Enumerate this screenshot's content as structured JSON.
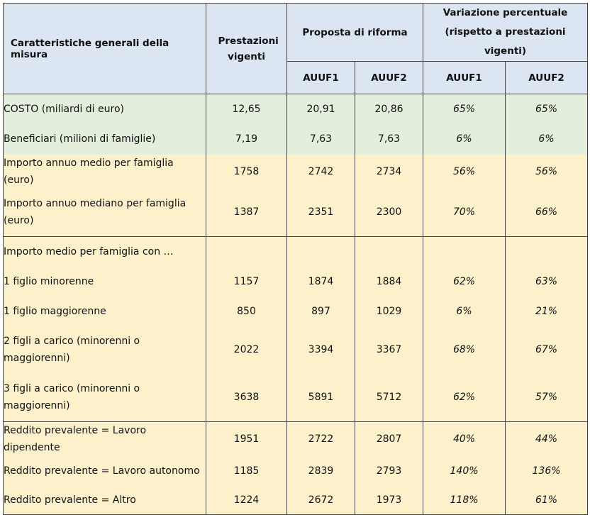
{
  "header": {
    "col_measure": "Caratteristiche generali della misura",
    "col_current": "Prestazioni vigenti",
    "col_reform": "Proposta di riforma",
    "col_variation_line1": "Variazione percentuale",
    "col_variation_line2": "(rispetto a prestazioni vigenti)",
    "auuf1": "AUUF1",
    "auuf2": "AUUF2"
  },
  "section_general": [
    {
      "label": "COSTO (miliardi di euro)",
      "current": "12,65",
      "auuf1": "20,91",
      "auuf2": "20,86",
      "var1": "65%",
      "var2": "65%"
    },
    {
      "label": "Beneficiari (milioni di famiglie)",
      "current": "7,19",
      "auuf1": "7,63",
      "auuf2": "7,63",
      "var1": "6%",
      "var2": "6%"
    }
  ],
  "section_amounts": [
    {
      "label": "Importo annuo medio per famiglia (euro)",
      "current": "1758",
      "auuf1": "2742",
      "auuf2": "2734",
      "var1": "56%",
      "var2": "56%"
    },
    {
      "label": "Importo annuo mediano per famiglia (euro)",
      "current": "1387",
      "auuf1": "2351",
      "auuf2": "2300",
      "var1": "70%",
      "var2": "66%"
    }
  ],
  "section_children": {
    "subheading": "Importo medio per famiglia con …",
    "rows": [
      {
        "label": "1 figlio minorenne",
        "current": "1157",
        "auuf1": "1874",
        "auuf2": "1884",
        "var1": "62%",
        "var2": "63%"
      },
      {
        "label": "1 figlio maggiorenne",
        "current": "850",
        "auuf1": "897",
        "auuf2": "1029",
        "var1": "6%",
        "var2": "21%"
      },
      {
        "label": "2 figli a carico (minorenni o maggiorenni)",
        "current": "2022",
        "auuf1": "3394",
        "auuf2": "3367",
        "var1": "68%",
        "var2": "67%"
      },
      {
        "label": "3 figli a carico (minorenni o maggiorenni)",
        "current": "3638",
        "auuf1": "5891",
        "auuf2": "5712",
        "var1": "62%",
        "var2": "57%"
      }
    ]
  },
  "section_income": [
    {
      "label": "Reddito prevalente = Lavoro dipendente",
      "current": "1951",
      "auuf1": "2722",
      "auuf2": "2807",
      "var1": "40%",
      "var2": "44%"
    },
    {
      "label": "Reddito prevalente = Lavoro autonomo",
      "current": "1185",
      "auuf1": "2839",
      "auuf2": "2793",
      "var1": "140%",
      "var2": "136%"
    },
    {
      "label": "Reddito prevalente = Altro",
      "current": "1224",
      "auuf1": "2672",
      "auuf2": "1973",
      "var1": "118%",
      "var2": "61%"
    }
  ],
  "colors": {
    "header": "#dce6f3",
    "green": "#e3efdc",
    "yellow": "#fdf1cc",
    "border": "#444444"
  }
}
